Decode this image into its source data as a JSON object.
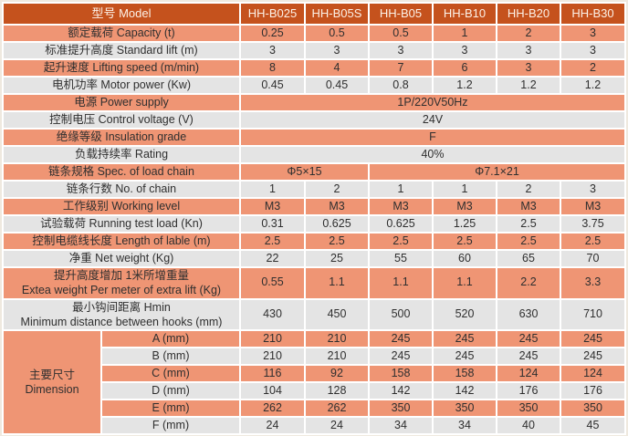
{
  "table": {
    "header": {
      "label": "型号 Model",
      "models": [
        "HH-B025",
        "HH-B05S",
        "HH-B05",
        "HH-B10",
        "HH-B20",
        "HH-B30"
      ]
    },
    "rows": [
      {
        "label": "额定载荷 Capacity (t)",
        "values": [
          "0.25",
          "0.5",
          "0.5",
          "1",
          "2",
          "3"
        ]
      },
      {
        "label": "标准提升高度 Standard lift (m)",
        "values": [
          "3",
          "3",
          "3",
          "3",
          "3",
          "3"
        ]
      },
      {
        "label": "起升速度 Lifting speed (m/min)",
        "values": [
          "8",
          "4",
          "7",
          "6",
          "3",
          "2"
        ]
      },
      {
        "label": "电机功率 Motor power (Kw)",
        "values": [
          "0.45",
          "0.45",
          "0.8",
          "1.2",
          "1.2",
          "1.2"
        ]
      },
      {
        "label": "电源 Power supply",
        "span_all": "1P/220V50Hz"
      },
      {
        "label": "控制电压 Control voltage (V)",
        "span_all": "24V"
      },
      {
        "label": "绝缘等级 Insulation grade",
        "span_all": "F"
      },
      {
        "label": "负载持续率 Rating",
        "span_all": "40%"
      },
      {
        "label": "链条规格 Spec. of load chain",
        "spans": [
          {
            "text": "Φ5×15",
            "cols": 2
          },
          {
            "text": "Φ7.1×21",
            "cols": 4
          }
        ]
      },
      {
        "label": "链条行数 No. of chain",
        "values": [
          "1",
          "2",
          "1",
          "1",
          "2",
          "3"
        ]
      },
      {
        "label": "工作级别 Working level",
        "values": [
          "M3",
          "M3",
          "M3",
          "M3",
          "M3",
          "M3"
        ]
      },
      {
        "label": "试验载荷 Running test load (Kn)",
        "values": [
          "0.31",
          "0.625",
          "0.625",
          "1.25",
          "2.5",
          "3.75"
        ]
      },
      {
        "label": "控制电缆线长度 Length of lable (m)",
        "values": [
          "2.5",
          "2.5",
          "2.5",
          "2.5",
          "2.5",
          "2.5"
        ]
      },
      {
        "label": "净重 Net weight (Kg)",
        "values": [
          "22",
          "25",
          "55",
          "60",
          "65",
          "70"
        ]
      },
      {
        "label_lines": [
          "提升高度增加 1米所增重量",
          "Extea weight Per meter of extra lift (Kg)"
        ],
        "values": [
          "0.55",
          "1.1",
          "1.1",
          "1.1",
          "2.2",
          "3.3"
        ]
      },
      {
        "label_lines": [
          "最小钩间距离 Hmin",
          "Minimum distance between hooks (mm)"
        ],
        "values": [
          "430",
          "450",
          "500",
          "520",
          "630",
          "710"
        ]
      }
    ],
    "dimension_section": {
      "group_label_lines": [
        "主要尺寸",
        "Dimension"
      ],
      "rows": [
        {
          "label": "A (mm)",
          "values": [
            "210",
            "210",
            "245",
            "245",
            "245",
            "245"
          ]
        },
        {
          "label": "B (mm)",
          "values": [
            "210",
            "210",
            "245",
            "245",
            "245",
            "245"
          ]
        },
        {
          "label": "C (mm)",
          "values": [
            "116",
            "92",
            "158",
            "158",
            "124",
            "124"
          ]
        },
        {
          "label": "D (mm)",
          "values": [
            "104",
            "128",
            "142",
            "142",
            "176",
            "176"
          ]
        },
        {
          "label": "E (mm)",
          "values": [
            "262",
            "262",
            "350",
            "350",
            "350",
            "350"
          ]
        },
        {
          "label": "F (mm)",
          "values": [
            "24",
            "24",
            "34",
            "34",
            "40",
            "45"
          ]
        }
      ]
    }
  },
  "colors": {
    "header_bg": "#c5521d",
    "header_text": "#fdf2e8",
    "row_coral": "#ef9574",
    "row_gray": "#e4e4e4",
    "body_text": "#2f2f2f",
    "border": "#ffffff",
    "page_bg": "#efe9df"
  }
}
